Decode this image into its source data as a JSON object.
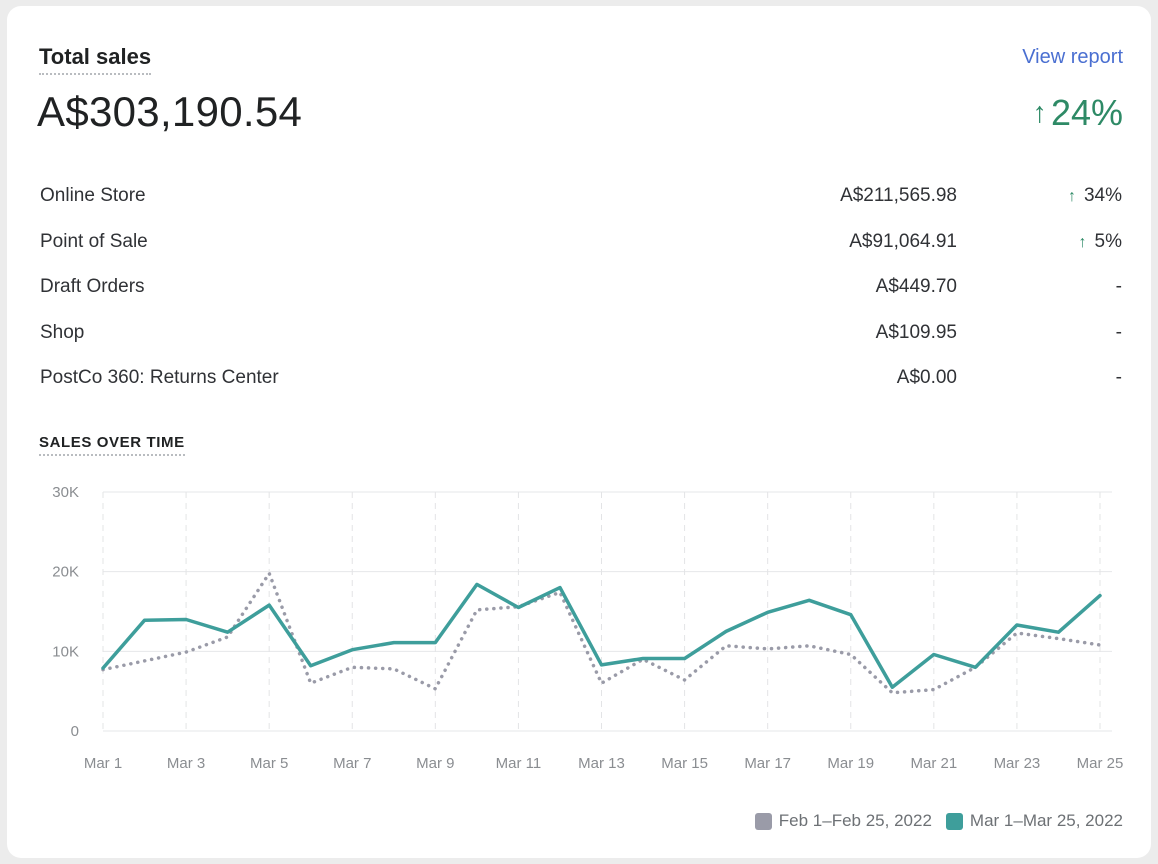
{
  "card": {
    "title": "Total sales",
    "view_report": "View report",
    "total": "A$303,190.54",
    "total_change": "24%"
  },
  "channels": [
    {
      "label": "Online Store",
      "value": "A$211,565.98",
      "change": "34%",
      "trend": "up"
    },
    {
      "label": "Point of Sale",
      "value": "A$91,064.91",
      "change": "5%",
      "trend": "up"
    },
    {
      "label": "Draft Orders",
      "value": "A$449.70",
      "change": "-",
      "trend": "none"
    },
    {
      "label": "Shop",
      "value": "A$109.95",
      "change": "-",
      "trend": "none"
    },
    {
      "label": "PostCo 360: Returns Center",
      "value": "A$0.00",
      "change": "-",
      "trend": "none"
    }
  ],
  "colors": {
    "current": "#3e9e9b",
    "previous": "#9a9ba8",
    "positive": "#2e8a66"
  },
  "chart_data": {
    "type": "line",
    "title": "SALES OVER TIME",
    "xlabel": "",
    "ylabel": "",
    "ylim": [
      0,
      30000
    ],
    "yticks": [
      0,
      10000,
      20000,
      30000
    ],
    "ytick_labels": [
      "0",
      "10K",
      "20K",
      "30K"
    ],
    "x": [
      "Mar 1",
      "Mar 2",
      "Mar 3",
      "Mar 4",
      "Mar 5",
      "Mar 6",
      "Mar 7",
      "Mar 8",
      "Mar 9",
      "Mar 10",
      "Mar 11",
      "Mar 12",
      "Mar 13",
      "Mar 14",
      "Mar 15",
      "Mar 16",
      "Mar 17",
      "Mar 18",
      "Mar 19",
      "Mar 20",
      "Mar 21",
      "Mar 22",
      "Mar 23",
      "Mar 24",
      "Mar 25"
    ],
    "xtick_labels": [
      "Mar 1",
      "",
      "Mar 3",
      "",
      "Mar 5",
      "",
      "Mar 7",
      "",
      "Mar 9",
      "",
      "Mar 11",
      "",
      "Mar 13",
      "",
      "Mar 15",
      "",
      "Mar 17",
      "",
      "Mar 19",
      "",
      "Mar 21",
      "",
      "Mar 23",
      "",
      "Mar 25"
    ],
    "grid": true,
    "legend_position": "bottom-right",
    "series": [
      {
        "name": "Feb 1–Feb 25, 2022",
        "style": "dotted",
        "values": [
          7700,
          8800,
          9900,
          11800,
          19800,
          6000,
          8000,
          7800,
          5300,
          15200,
          15600,
          17400,
          6000,
          9000,
          6400,
          10700,
          10300,
          10700,
          9600,
          4800,
          5200,
          8000,
          12300,
          11600,
          10800
        ]
      },
      {
        "name": "Mar 1–Mar 25, 2022",
        "style": "solid",
        "values": [
          7900,
          13900,
          14000,
          12400,
          15800,
          8200,
          10200,
          11100,
          11100,
          18400,
          15500,
          18000,
          8300,
          9100,
          9100,
          12500,
          14900,
          16400,
          14600,
          5500,
          9600,
          8000,
          13300,
          12400,
          17000
        ]
      }
    ]
  }
}
